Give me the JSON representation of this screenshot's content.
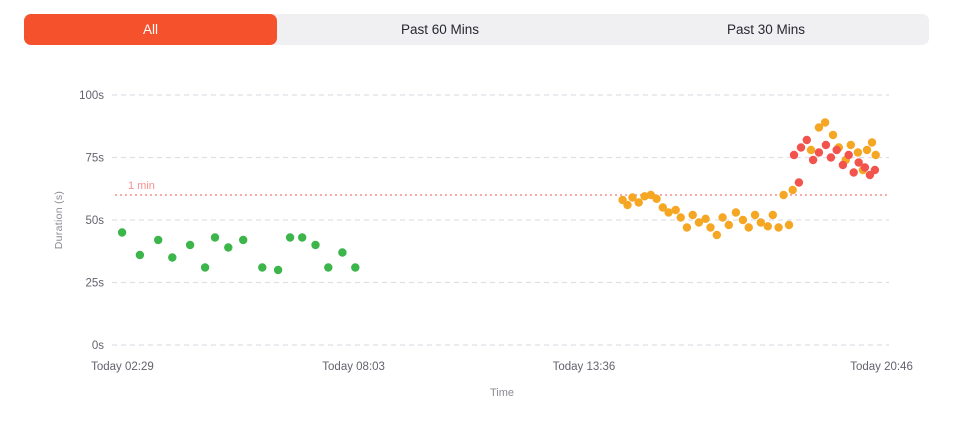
{
  "tabs": {
    "items": [
      {
        "label": "All",
        "selected": true
      },
      {
        "label": "Past 60 Mins",
        "selected": false
      },
      {
        "label": "Past 30 Mins",
        "selected": false
      }
    ]
  },
  "colors": {
    "accent": "#f4512c",
    "tabbar_bg": "#f0f0f3",
    "tab_text": "#26262f",
    "green": "#3cb54a",
    "orange": "#f5a623",
    "red": "#f2544d",
    "threshold": "#f78f8f",
    "grid": "#e0e0e6",
    "tick_text": "#63636e",
    "axis_title": "#8a8a93"
  },
  "chart_data": {
    "type": "scatter",
    "title": "",
    "xlabel": "Time",
    "ylabel": "Duration (s)",
    "ylim": [
      0,
      100
    ],
    "xlim_hours": [
      2.3,
      20.95
    ],
    "grid": true,
    "legend": false,
    "yticks": [
      {
        "value": 0,
        "label": "0s"
      },
      {
        "value": 25,
        "label": "25s"
      },
      {
        "value": 50,
        "label": "50s"
      },
      {
        "value": 75,
        "label": "75s"
      },
      {
        "value": 100,
        "label": "100s"
      }
    ],
    "xticks": [
      {
        "hour": 2.48,
        "label": "Today 02:29"
      },
      {
        "hour": 8.05,
        "label": "Today 08:03"
      },
      {
        "hour": 13.6,
        "label": "Today 13:36"
      },
      {
        "hour": 20.77,
        "label": "Today 20:46"
      }
    ],
    "threshold": {
      "value": 60,
      "label": "1 min"
    },
    "series": [
      {
        "name": "green",
        "color_key": "green",
        "points": [
          [
            2.47,
            45
          ],
          [
            2.9,
            36
          ],
          [
            3.34,
            42
          ],
          [
            3.68,
            35
          ],
          [
            4.11,
            40
          ],
          [
            4.47,
            31
          ],
          [
            4.71,
            43
          ],
          [
            5.03,
            39
          ],
          [
            5.39,
            42
          ],
          [
            5.85,
            31
          ],
          [
            6.23,
            30
          ],
          [
            6.52,
            43
          ],
          [
            6.81,
            43
          ],
          [
            7.13,
            40
          ],
          [
            7.44,
            31
          ],
          [
            7.78,
            37
          ],
          [
            8.09,
            31
          ]
        ]
      },
      {
        "name": "orange",
        "color_key": "orange",
        "points": [
          [
            14.53,
            58
          ],
          [
            14.65,
            56
          ],
          [
            14.77,
            59
          ],
          [
            14.92,
            57
          ],
          [
            15.06,
            59.5
          ],
          [
            15.21,
            60
          ],
          [
            15.35,
            58.5
          ],
          [
            15.5,
            55
          ],
          [
            15.64,
            53
          ],
          [
            15.81,
            54
          ],
          [
            15.93,
            51
          ],
          [
            16.08,
            47
          ],
          [
            16.22,
            52
          ],
          [
            16.37,
            49
          ],
          [
            16.53,
            50.5
          ],
          [
            16.65,
            47
          ],
          [
            16.8,
            44
          ],
          [
            16.94,
            51
          ],
          [
            17.09,
            48
          ],
          [
            17.26,
            53
          ],
          [
            17.43,
            50
          ],
          [
            17.57,
            47
          ],
          [
            17.72,
            52
          ],
          [
            17.86,
            49
          ],
          [
            18.03,
            47.5
          ],
          [
            18.15,
            52
          ],
          [
            18.29,
            47
          ],
          [
            18.41,
            60
          ],
          [
            18.54,
            48
          ],
          [
            18.63,
            62
          ],
          [
            19.07,
            78
          ],
          [
            19.26,
            87
          ],
          [
            19.41,
            89
          ],
          [
            19.6,
            84
          ],
          [
            19.74,
            79
          ],
          [
            19.91,
            74
          ],
          [
            20.03,
            80
          ],
          [
            20.2,
            77
          ],
          [
            20.32,
            70
          ],
          [
            20.42,
            78
          ],
          [
            20.54,
            81
          ],
          [
            20.63,
            76
          ]
        ]
      },
      {
        "name": "red",
        "color_key": "red",
        "points": [
          [
            18.66,
            76
          ],
          [
            18.78,
            65
          ],
          [
            18.83,
            79
          ],
          [
            18.97,
            82
          ],
          [
            19.12,
            74
          ],
          [
            19.26,
            77
          ],
          [
            19.43,
            80
          ],
          [
            19.55,
            75
          ],
          [
            19.69,
            78
          ],
          [
            19.84,
            72
          ],
          [
            19.98,
            76
          ],
          [
            20.1,
            69
          ],
          [
            20.22,
            73
          ],
          [
            20.37,
            71
          ],
          [
            20.49,
            68
          ],
          [
            20.61,
            70
          ]
        ]
      }
    ]
  }
}
